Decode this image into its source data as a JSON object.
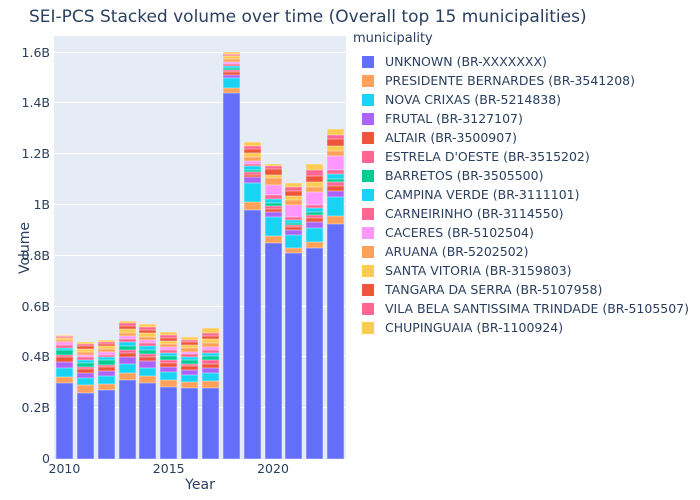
{
  "title": "SEI-PCS Stacked volume over time (Overall top 15 municipalities)",
  "colors": {
    "text": "#2a3f5f",
    "plot_background": "#e5ecf6",
    "gridline": "#ffffff"
  },
  "chart_data": {
    "type": "bar",
    "stacked": true,
    "title": "SEI-PCS Stacked volume over time (Overall top 15 municipalities)",
    "xlabel": "Year",
    "ylabel": "Volume",
    "legend_title": "municipality",
    "legend_position": "right",
    "grid": true,
    "unit": "billions",
    "ylim": [
      0,
      1.665
    ],
    "x": [
      2010,
      2011,
      2012,
      2013,
      2014,
      2015,
      2016,
      2017,
      2018,
      2019,
      2020,
      2021,
      2022,
      2023
    ],
    "xticks": [
      {
        "label": "2010",
        "year": 2010
      },
      {
        "label": "2015",
        "year": 2015
      },
      {
        "label": "2020",
        "year": 2020
      }
    ],
    "yticks": [
      {
        "label": "0",
        "value": 0
      },
      {
        "label": "0.2B",
        "value": 0.2
      },
      {
        "label": "0.4B",
        "value": 0.4
      },
      {
        "label": "0.6B",
        "value": 0.6
      },
      {
        "label": "0.8B",
        "value": 0.8
      },
      {
        "label": "1B",
        "value": 1.0
      },
      {
        "label": "1.2B",
        "value": 1.2
      },
      {
        "label": "1.4B",
        "value": 1.4
      },
      {
        "label": "1.6B",
        "value": 1.6
      }
    ],
    "totals_approx": [
      0.49,
      0.46,
      0.47,
      0.545,
      0.53,
      0.5,
      0.48,
      0.515,
      1.6,
      1.25,
      1.16,
      1.085,
      1.16,
      1.3
    ],
    "series": [
      {
        "name": "UNKNOWN (BR-XXXXXXX)",
        "color": "#636efa",
        "values": [
          0.3,
          0.26,
          0.27,
          0.31,
          0.3,
          0.285,
          0.28,
          0.28,
          1.44,
          0.98,
          0.85,
          0.81,
          0.83,
          0.925
        ]
      },
      {
        "name": "PRESIDENTE BERNARDES (BR-3541208)",
        "color": "#ffa15a",
        "values": [
          0.024,
          0.03,
          0.026,
          0.03,
          0.028,
          0.026,
          0.024,
          0.026,
          0.02,
          0.033,
          0.027,
          0.022,
          0.025,
          0.03
        ]
      },
      {
        "name": "NOVA CRIXAS (BR-5214838)",
        "color": "#19d3f3",
        "values": [
          0.035,
          0.028,
          0.03,
          0.034,
          0.032,
          0.03,
          0.028,
          0.032,
          0.039,
          0.072,
          0.075,
          0.05,
          0.055,
          0.075
        ]
      },
      {
        "name": "FRUTAL (BR-3127107)",
        "color": "#ab63fa",
        "values": [
          0.024,
          0.02,
          0.022,
          0.026,
          0.024,
          0.022,
          0.02,
          0.022,
          0.012,
          0.024,
          0.02,
          0.02,
          0.022,
          0.025
        ]
      },
      {
        "name": "ALTAIR (BR-3500907)",
        "color": "#ef553b",
        "values": [
          0.018,
          0.015,
          0.014,
          0.016,
          0.016,
          0.015,
          0.014,
          0.016,
          0.012,
          0.01,
          0.012,
          0.01,
          0.015,
          0.02
        ]
      },
      {
        "name": "ESTRELA D'OESTE (BR-3515202)",
        "color": "#ff6692",
        "values": [
          0.008,
          0.01,
          0.01,
          0.012,
          0.012,
          0.011,
          0.01,
          0.012,
          0.008,
          0.01,
          0.012,
          0.01,
          0.012,
          0.014
        ]
      },
      {
        "name": "BARRETOS (BR-3505500)",
        "color": "#00cc96",
        "values": [
          0.02,
          0.015,
          0.016,
          0.018,
          0.018,
          0.016,
          0.015,
          0.016,
          0.008,
          0.01,
          0.012,
          0.008,
          0.012,
          0.014
        ]
      },
      {
        "name": "CAMPINA VERDE (BR-3111101)",
        "color": "#19d3f3",
        "values": [
          0.01,
          0.012,
          0.012,
          0.014,
          0.014,
          0.013,
          0.012,
          0.014,
          0.008,
          0.013,
          0.016,
          0.012,
          0.016,
          0.018
        ]
      },
      {
        "name": "CARNEIRINHO (BR-3114550)",
        "color": "#ff6692",
        "values": [
          0.008,
          0.01,
          0.01,
          0.012,
          0.012,
          0.011,
          0.01,
          0.012,
          0.008,
          0.01,
          0.016,
          0.012,
          0.014,
          0.016
        ]
      },
      {
        "name": "CACERES (BR-5102504)",
        "color": "#ff97ff",
        "values": [
          0.012,
          0.01,
          0.01,
          0.012,
          0.012,
          0.011,
          0.01,
          0.012,
          0.008,
          0.01,
          0.039,
          0.047,
          0.05,
          0.055
        ]
      },
      {
        "name": "ARUANA (BR-5202502)",
        "color": "#ffa15a",
        "values": [
          0.01,
          0.012,
          0.012,
          0.014,
          0.014,
          0.013,
          0.013,
          0.015,
          0.012,
          0.018,
          0.027,
          0.02,
          0.02,
          0.022
        ]
      },
      {
        "name": "SANTA VITORIA (BR-3159803)",
        "color": "#fecb52",
        "values": [
          0.008,
          0.01,
          0.012,
          0.014,
          0.014,
          0.013,
          0.012,
          0.015,
          0.01,
          0.016,
          0.012,
          0.016,
          0.02,
          0.02
        ]
      },
      {
        "name": "TANGARA DA SERRA (BR-5107958)",
        "color": "#ef553b",
        "values": [
          0.005,
          0.012,
          0.01,
          0.012,
          0.012,
          0.012,
          0.012,
          0.014,
          0.006,
          0.014,
          0.024,
          0.02,
          0.025,
          0.025
        ]
      },
      {
        "name": "VILA BELA SANTISSIMA TRINDADE (BR-5105507)",
        "color": "#ff6692",
        "values": [
          0.004,
          0.008,
          0.008,
          0.01,
          0.01,
          0.01,
          0.01,
          0.012,
          0.005,
          0.012,
          0.01,
          0.012,
          0.02,
          0.018
        ]
      },
      {
        "name": "CHUPINGUAIA (BR-1100924)",
        "color": "#fecb52",
        "values": [
          0.004,
          0.008,
          0.008,
          0.011,
          0.012,
          0.012,
          0.01,
          0.017,
          0.005,
          0.018,
          0.008,
          0.016,
          0.024,
          0.023
        ]
      }
    ]
  }
}
